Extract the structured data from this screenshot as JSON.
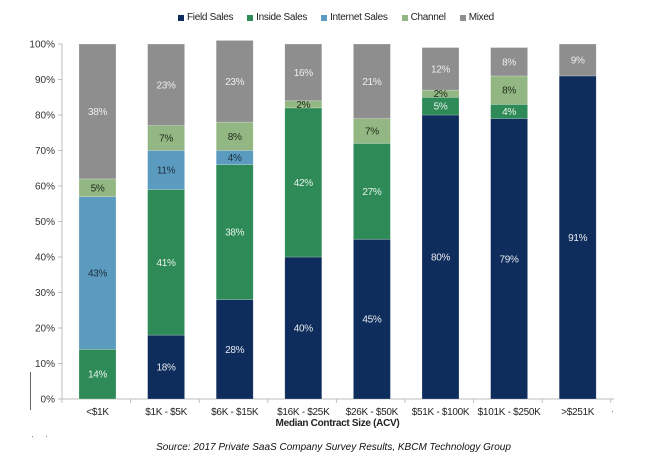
{
  "chart_data": {
    "type": "bar",
    "stacked": true,
    "title": "",
    "xlabel": "Median Contract Size (ACV)",
    "ylabel": "",
    "ylim": [
      0,
      100
    ],
    "yticks": [
      "0%",
      "10%",
      "20%",
      "30%",
      "40%",
      "50%",
      "60%",
      "70%",
      "80%",
      "90%",
      "100%"
    ],
    "grid": false,
    "legend_position": "top-center",
    "categories": [
      "<$1K",
      "$1K - $5K",
      "$6K - $15K",
      "$16K - $25K",
      "$26K - $50K",
      "$51K - $100K",
      "$101K - $250K",
      ">$251K"
    ],
    "series": [
      {
        "name": "Field Sales",
        "color": "#0f2d5c",
        "label_color": "#e6e9ef",
        "values": [
          0,
          18,
          28,
          40,
          45,
          80,
          79,
          91
        ]
      },
      {
        "name": "Inside Sales",
        "color": "#2e8b57",
        "label_color": "#e8f2ec",
        "values": [
          14,
          41,
          38,
          42,
          27,
          5,
          4,
          0
        ]
      },
      {
        "name": "Internet Sales",
        "color": "#5b9bc0",
        "label_color": "#1d2d3a",
        "values": [
          43,
          11,
          4,
          0,
          0,
          0,
          0,
          0
        ]
      },
      {
        "name": "Channel",
        "color": "#93b783",
        "label_color": "#1d2a18",
        "values": [
          5,
          7,
          8,
          2,
          7,
          2,
          8,
          0
        ]
      },
      {
        "name": "Mixed",
        "color": "#8e8e8e",
        "label_color": "#eeeeee",
        "values": [
          38,
          23,
          23,
          16,
          21,
          12,
          8,
          9
        ]
      }
    ],
    "source": "Source: 2017 Private SaaS Company Survey Results, KBCM Technology Group"
  }
}
